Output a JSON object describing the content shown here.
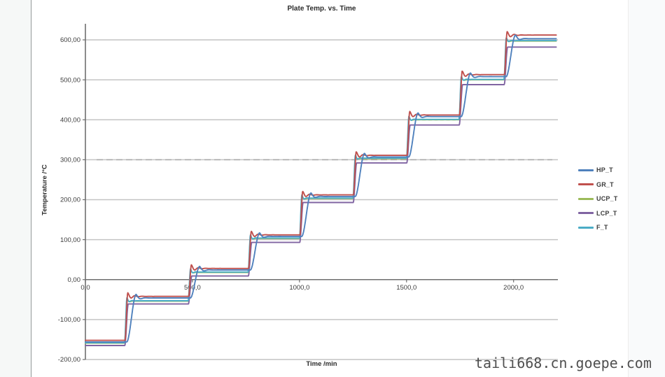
{
  "page": {
    "watermark": "taili668.cn.goepe.com"
  },
  "chart_data": {
    "type": "line",
    "title": "Plate Temp. vs. Time",
    "xlabel": "Time /min",
    "ylabel": "Temperature /°C",
    "xlim": [
      0,
      2207
    ],
    "ylim": [
      -200,
      600
    ],
    "grid": "horizontal-100",
    "legend_position": "right",
    "x_ticks": {
      "values": [
        0,
        500,
        1000,
        1500,
        2000
      ],
      "labels": [
        "0,0",
        "500,0",
        "1000,0",
        "1500,0",
        "2000,0"
      ]
    },
    "y_ticks": {
      "values": [
        600,
        500,
        400,
        300,
        200,
        100,
        0,
        -100,
        -200
      ],
      "labels": [
        "600,00",
        "500,00",
        "400,00",
        "300,00",
        "200,00",
        "100,00",
        "0,00",
        "-100,00",
        "-200,00"
      ]
    },
    "description": "Stepped temperature profile: all channels hold plateaus and step up together at each setpoint change; GR_T runs hottest, LCP_T coldest, HP_T responds slowest with an S-shaped lagging rise and slight overshoot at every step.",
    "step_times_min": [
      0,
      183,
      480,
      760,
      1000,
      1250,
      1500,
      1745,
      1955
    ],
    "end_time_min": 2200,
    "sample_step_min": 1.5,
    "series": [
      {
        "name": "UCP_T",
        "color": "#9BBB59",
        "plateaus": [
          -159,
          -54,
          18,
          103,
          203,
          303,
          400,
          500,
          597
        ],
        "dynamics": {
          "delay": 0,
          "rise": 12,
          "overshoot": 4,
          "period": 28,
          "decay": 10
        }
      },
      {
        "name": "LCP_T",
        "color": "#8064A2",
        "plateaus": [
          -165,
          -61,
          9,
          93,
          193,
          292,
          387,
          488,
          582
        ],
        "dynamics": {
          "delay": 1,
          "rise": 16,
          "overshoot": 0,
          "period": 28,
          "decay": 10
        }
      },
      {
        "name": "F_T",
        "color": "#4BACC6",
        "plateaus": [
          -158,
          -53,
          19,
          104,
          204,
          304,
          401,
          501,
          598
        ],
        "dynamics": {
          "delay": 0,
          "rise": 11,
          "overshoot": 8,
          "period": 26,
          "decay": 9
        }
      },
      {
        "name": "GR_T",
        "color": "#C0504D",
        "plateaus": [
          -152,
          -42,
          28,
          112,
          212,
          311,
          412,
          513,
          612
        ],
        "dynamics": {
          "delay": 2,
          "rise": 13,
          "overshoot": 9,
          "period": 34,
          "decay": 20
        }
      },
      {
        "name": "HP_T",
        "color": "#4F81BD",
        "plateaus": [
          -156,
          -46,
          24,
          108,
          208,
          307,
          408,
          508,
          603
        ],
        "dynamics": {
          "delay": 10,
          "rise": 44,
          "overshoot": 9,
          "period": 48,
          "decay": 15
        }
      }
    ],
    "legend_order": [
      "HP_T",
      "GR_T",
      "UCP_T",
      "LCP_T",
      "F_T"
    ],
    "colors": {
      "gridline": "#c4c4c4",
      "gridline_artifact": "#a9a9a9",
      "axis": "#6f6f6f",
      "tick_text": "#3d3d3d"
    }
  }
}
